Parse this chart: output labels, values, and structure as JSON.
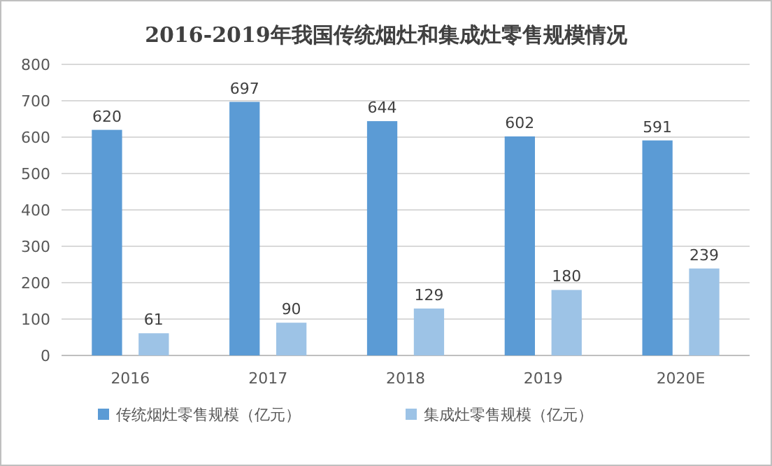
{
  "chart_data": {
    "type": "bar",
    "title": "2016-2019年我国传统烟灶和集成灶零售规模情况",
    "categories": [
      "2016",
      "2017",
      "2018",
      "2019",
      "2020E"
    ],
    "series": [
      {
        "name": "传统烟灶零售规模（亿元）",
        "color": "#5b9bd5",
        "values": [
          620,
          697,
          644,
          602,
          591
        ]
      },
      {
        "name": "集成灶零售规模（亿元）",
        "color": "#9dc3e6",
        "values": [
          61,
          90,
          129,
          180,
          239
        ]
      }
    ],
    "ylim": [
      0,
      800
    ],
    "yticks": [
      0,
      100,
      200,
      300,
      400,
      500,
      600,
      700,
      800
    ],
    "grid": "y",
    "legend": "bottom",
    "data_labels": true
  }
}
